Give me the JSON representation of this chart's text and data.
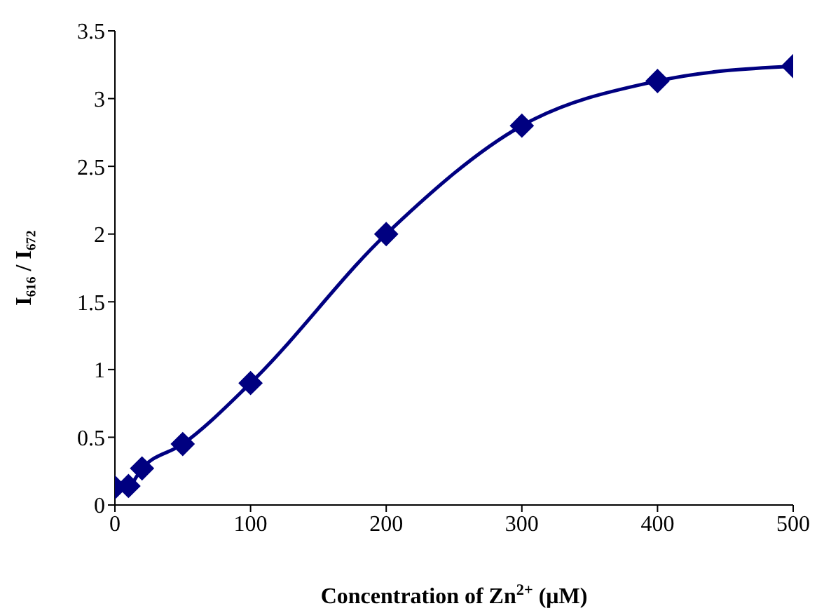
{
  "chart_data": {
    "type": "line",
    "xlabel": "Concentration of Zn$^{2+}$ (μM)",
    "ylabel": "I₆₁₆ / I₆₇₂",
    "x": [
      0,
      10,
      20,
      50,
      100,
      200,
      300,
      400,
      500
    ],
    "series": [
      {
        "color": "#000080",
        "values": [
          0.13,
          0.14,
          0.27,
          0.45,
          0.9,
          2.0,
          2.8,
          3.13,
          3.24
        ]
      }
    ],
    "xlim": [
      0,
      500
    ],
    "xticks": [
      0,
      100,
      200,
      300,
      400,
      500
    ],
    "ylim": [
      0,
      3.5
    ],
    "yticks": [
      0,
      0.5,
      1,
      1.5,
      2,
      2.5,
      3,
      3.5
    ],
    "marker": "diamond",
    "grid": false,
    "legend": false
  }
}
